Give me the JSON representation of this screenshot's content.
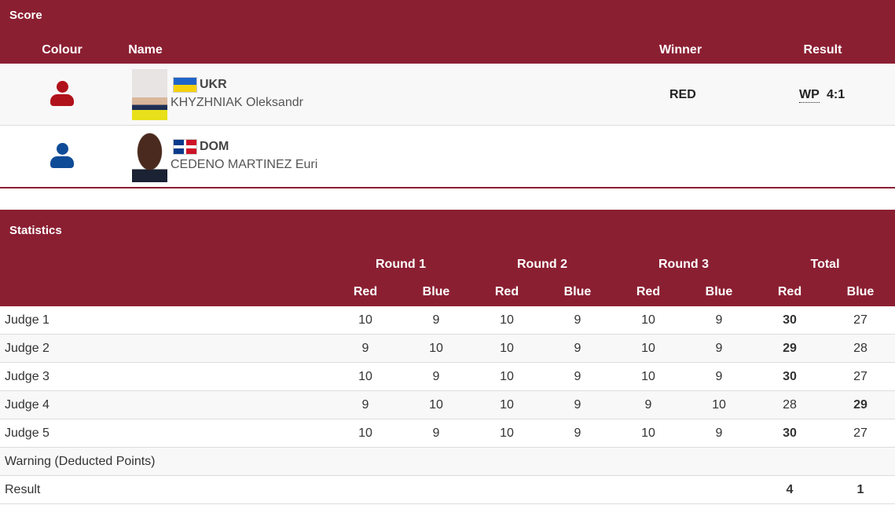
{
  "score": {
    "title": "Score",
    "columns": {
      "colour": "Colour",
      "name": "Name",
      "winner": "Winner",
      "result": "Result"
    },
    "athletes": [
      {
        "colour": "red",
        "noc": "UKR",
        "name": "KHYZHNIAK Oleksandr",
        "winner": "RED",
        "result_abbr": "WP",
        "result_score": "4:1"
      },
      {
        "colour": "blue",
        "noc": "DOM",
        "name": "CEDENO MARTINEZ Euri",
        "winner": "",
        "result_abbr": "",
        "result_score": ""
      }
    ]
  },
  "colors": {
    "header": "#8b1f32",
    "red": "#b0121b",
    "blue": "#0f4c97"
  },
  "statistics": {
    "title": "Statistics",
    "rounds": [
      "Round 1",
      "Round 2",
      "Round 3",
      "Total"
    ],
    "sub": [
      "Red",
      "Blue"
    ],
    "rows": [
      {
        "label": "Judge 1",
        "values": [
          "10",
          "9",
          "10",
          "9",
          "10",
          "9",
          "30",
          "27"
        ],
        "bold": [
          6
        ]
      },
      {
        "label": "Judge 2",
        "values": [
          "9",
          "10",
          "10",
          "9",
          "10",
          "9",
          "29",
          "28"
        ],
        "bold": [
          6
        ]
      },
      {
        "label": "Judge 3",
        "values": [
          "10",
          "9",
          "10",
          "9",
          "10",
          "9",
          "30",
          "27"
        ],
        "bold": [
          6
        ]
      },
      {
        "label": "Judge 4",
        "values": [
          "9",
          "10",
          "10",
          "9",
          "9",
          "10",
          "28",
          "29"
        ],
        "bold": [
          7
        ]
      },
      {
        "label": "Judge 5",
        "values": [
          "10",
          "9",
          "10",
          "9",
          "10",
          "9",
          "30",
          "27"
        ],
        "bold": [
          6
        ]
      },
      {
        "label": "Warning (Deducted Points)",
        "values": [
          "",
          "",
          "",
          "",
          "",
          "",
          "",
          ""
        ],
        "bold": []
      },
      {
        "label": "Result",
        "values": [
          "",
          "",
          "",
          "",
          "",
          "",
          "4",
          "1"
        ],
        "bold": [
          6,
          7
        ]
      }
    ]
  }
}
